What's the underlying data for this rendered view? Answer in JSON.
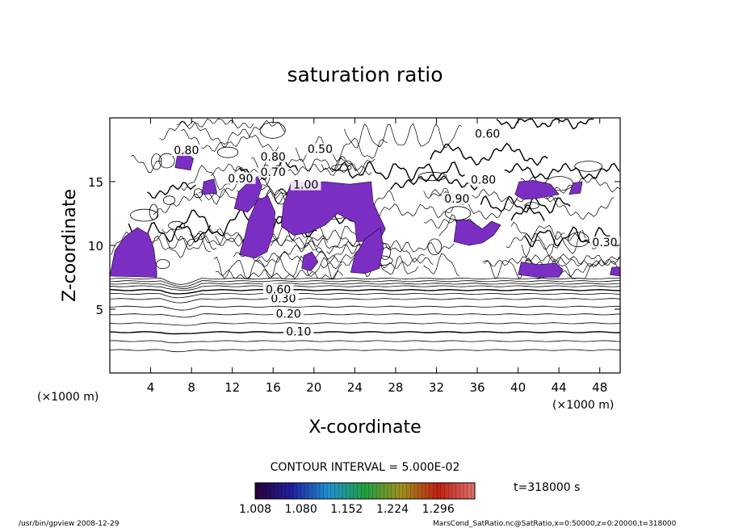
{
  "chart_data": {
    "type": "contour",
    "title": "saturation ratio",
    "xlabel": "X-coordinate",
    "ylabel": "Z-coordinate",
    "x_unit": "(×1000 m)",
    "z_unit": "(×1000 m)",
    "xlim": [
      0,
      50
    ],
    "zlim": [
      0,
      20
    ],
    "x_ticks": [
      "4",
      "8",
      "12",
      "16",
      "20",
      "24",
      "28",
      "32",
      "36",
      "40",
      "44",
      "48"
    ],
    "z_ticks": [
      "5",
      "10",
      "15"
    ],
    "contour_labels": [
      {
        "label": "0.10",
        "x": 18.5,
        "z": 3.2
      },
      {
        "label": "0.20",
        "x": 17.5,
        "z": 4.6
      },
      {
        "label": "0.30",
        "x": 17.0,
        "z": 5.8
      },
      {
        "label": "0.60",
        "x": 16.5,
        "z": 6.5
      },
      {
        "label": "0.60",
        "x": 37.0,
        "z": 18.7
      },
      {
        "label": "0.80",
        "x": 16.0,
        "z": 16.9
      },
      {
        "label": "0.80",
        "x": 36.6,
        "z": 15.1
      },
      {
        "label": "0.70",
        "x": 16.0,
        "z": 15.7
      },
      {
        "label": "0.90",
        "x": 12.8,
        "z": 15.2
      },
      {
        "label": "1.00",
        "x": 19.2,
        "z": 14.7
      },
      {
        "label": "0.50",
        "x": 20.6,
        "z": 17.5
      },
      {
        "label": "0.80",
        "x": 7.5,
        "z": 17.4
      },
      {
        "label": "0.90",
        "x": 34.0,
        "z": 13.6
      },
      {
        "label": "0.30",
        "x": 48.5,
        "z": 10.2
      }
    ],
    "shaded_range": [
      1.008,
      1.296
    ],
    "contour_interval_text": "CONTOUR INTERVAL = 5.000E-02",
    "colorbar_ticks": [
      "1.008",
      "1.080",
      "1.152",
      "1.224",
      "1.296"
    ],
    "colorbar_colors": [
      "#2a0038",
      "#2020a0",
      "#2090d0",
      "#20a040",
      "#a09020",
      "#c02010",
      "#e07070"
    ],
    "fill_color": "#7b2fc2",
    "time_label": "t=318000 s"
  },
  "footer": {
    "left": "/usr/bin/gpview   2008-12-29",
    "right": "MarsCond_SatRatio.nc@SatRatio,x=0:50000,z=0:20000,t=318000"
  }
}
